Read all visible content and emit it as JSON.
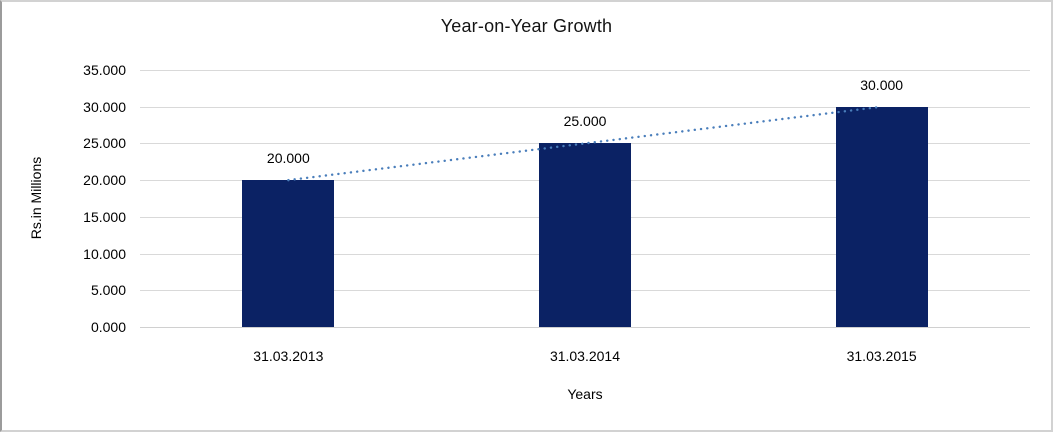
{
  "chart_data": {
    "type": "bar",
    "title": "Year-on-Year Growth",
    "xlabel": "Years",
    "ylabel": "Rs.in Millions",
    "categories": [
      "31.03.2013",
      "31.03.2014",
      "31.03.2015"
    ],
    "values": [
      20,
      25,
      30
    ],
    "value_labels": [
      "20.000",
      "25.000",
      "30.000"
    ],
    "ylim": [
      0,
      35
    ],
    "ytick_step": 5,
    "ytick_labels": [
      "0.000",
      "5.000",
      "10.000",
      "15.000",
      "20.000",
      "25.000",
      "30.000",
      "35.000"
    ],
    "grid": true,
    "legend": "none",
    "trendline": {
      "type": "linear",
      "style": "dotted"
    },
    "colors": {
      "bar": "#0b2264",
      "trendline": "#4a7ebb",
      "gridline": "#d9d9d9",
      "axis_line": "#d0d0d0",
      "text": "#000000",
      "title_text": "#141414",
      "background": "#ffffff",
      "frame_border": "#d2d2d2"
    }
  }
}
